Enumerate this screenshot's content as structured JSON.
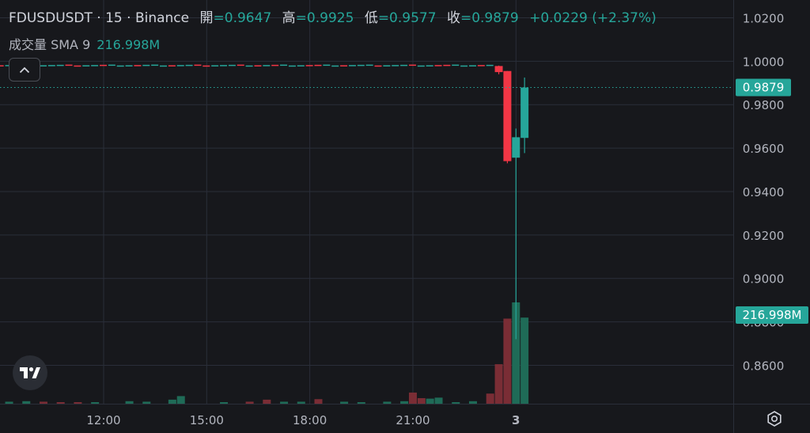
{
  "header": {
    "symbol_line": "FDUSDUSDT · 15 · Binance",
    "open_label": "開",
    "open_value": "=0.9647",
    "high_label": "高",
    "high_value": "=0.9925",
    "low_label": "低",
    "low_value": "=0.9577",
    "close_label": "收",
    "close_value": "=0.9879",
    "change": "+0.0229 (+2.37%)"
  },
  "volume_legend": {
    "label": "成交量 SMA 9",
    "value": "216.998M"
  },
  "price_badge": "0.9879",
  "volume_badge": "216.998M",
  "colors": {
    "up": "#26a69a",
    "down": "#f23645",
    "background": "#17181c",
    "grid": "#2a2e39",
    "text": "#b2b5be"
  },
  "icons": {
    "collapse": "chevron-up-icon",
    "logo": "tradingview-logo-icon",
    "settings": "gear-icon"
  },
  "chart_data": {
    "type": "candlestick",
    "title": "FDUSDUSDT · 15 · Binance",
    "interval": "15",
    "x_ticks": [
      "12:00",
      "15:00",
      "18:00",
      "21:00",
      "3"
    ],
    "y_ticks": [
      "1.0200",
      "1.0000",
      "0.9800",
      "0.9600",
      "0.9400",
      "0.9200",
      "0.9000",
      "0.8800",
      "0.8600"
    ],
    "ylim": [
      0.8423,
      1.0282
    ],
    "last_price": 0.9879,
    "grid": true,
    "candles": [
      {
        "time": "23:30",
        "open": 0.9978,
        "high": 0.998,
        "low": 0.994,
        "close": 0.995,
        "dir": "down"
      },
      {
        "time": "23:45",
        "open": 0.9955,
        "high": 0.9955,
        "low": 0.953,
        "close": 0.954,
        "dir": "down"
      },
      {
        "time": "00:00",
        "open": 0.9556,
        "high": 0.969,
        "low": 0.872,
        "close": 0.965,
        "dir": "up"
      },
      {
        "time": "00:15",
        "open": 0.9647,
        "high": 0.9925,
        "low": 0.9577,
        "close": 0.9879,
        "dir": "up"
      }
    ],
    "volume": {
      "label": "成交量 SMA 9",
      "current": "216.998M",
      "bars": [
        {
          "time": "09:15",
          "rel": 0.02,
          "dir": "up"
        },
        {
          "time": "09:45",
          "rel": 0.025,
          "dir": "up"
        },
        {
          "time": "10:15",
          "rel": 0.02,
          "dir": "down"
        },
        {
          "time": "10:45",
          "rel": 0.015,
          "dir": "down"
        },
        {
          "time": "11:15",
          "rel": 0.015,
          "dir": "down"
        },
        {
          "time": "11:45",
          "rel": 0.015,
          "dir": "up"
        },
        {
          "time": "12:45",
          "rel": 0.025,
          "dir": "up"
        },
        {
          "time": "13:15",
          "rel": 0.02,
          "dir": "up"
        },
        {
          "time": "14:00",
          "rel": 0.04,
          "dir": "up"
        },
        {
          "time": "14:15",
          "rel": 0.075,
          "dir": "up"
        },
        {
          "time": "15:30",
          "rel": 0.015,
          "dir": "up"
        },
        {
          "time": "16:15",
          "rel": 0.02,
          "dir": "down"
        },
        {
          "time": "16:45",
          "rel": 0.04,
          "dir": "down"
        },
        {
          "time": "17:15",
          "rel": 0.02,
          "dir": "up"
        },
        {
          "time": "17:45",
          "rel": 0.02,
          "dir": "up"
        },
        {
          "time": "18:15",
          "rel": 0.045,
          "dir": "down"
        },
        {
          "time": "19:00",
          "rel": 0.02,
          "dir": "up"
        },
        {
          "time": "19:30",
          "rel": 0.015,
          "dir": "up"
        },
        {
          "time": "20:15",
          "rel": 0.02,
          "dir": "up"
        },
        {
          "time": "20:45",
          "rel": 0.025,
          "dir": "up"
        },
        {
          "time": "21:00",
          "rel": 0.11,
          "dir": "down"
        },
        {
          "time": "21:15",
          "rel": 0.055,
          "dir": "down"
        },
        {
          "time": "21:30",
          "rel": 0.05,
          "dir": "up"
        },
        {
          "time": "21:45",
          "rel": 0.06,
          "dir": "up"
        },
        {
          "time": "22:15",
          "rel": 0.015,
          "dir": "up"
        },
        {
          "time": "22:45",
          "rel": 0.025,
          "dir": "up"
        },
        {
          "time": "23:15",
          "rel": 0.1,
          "dir": "down"
        },
        {
          "time": "23:30",
          "rel": 0.39,
          "dir": "down"
        },
        {
          "time": "23:45",
          "rel": 0.84,
          "dir": "down"
        },
        {
          "time": "00:00",
          "rel": 1.0,
          "dir": "up"
        },
        {
          "time": "00:15",
          "rel": 0.85,
          "dir": "up"
        }
      ]
    }
  }
}
